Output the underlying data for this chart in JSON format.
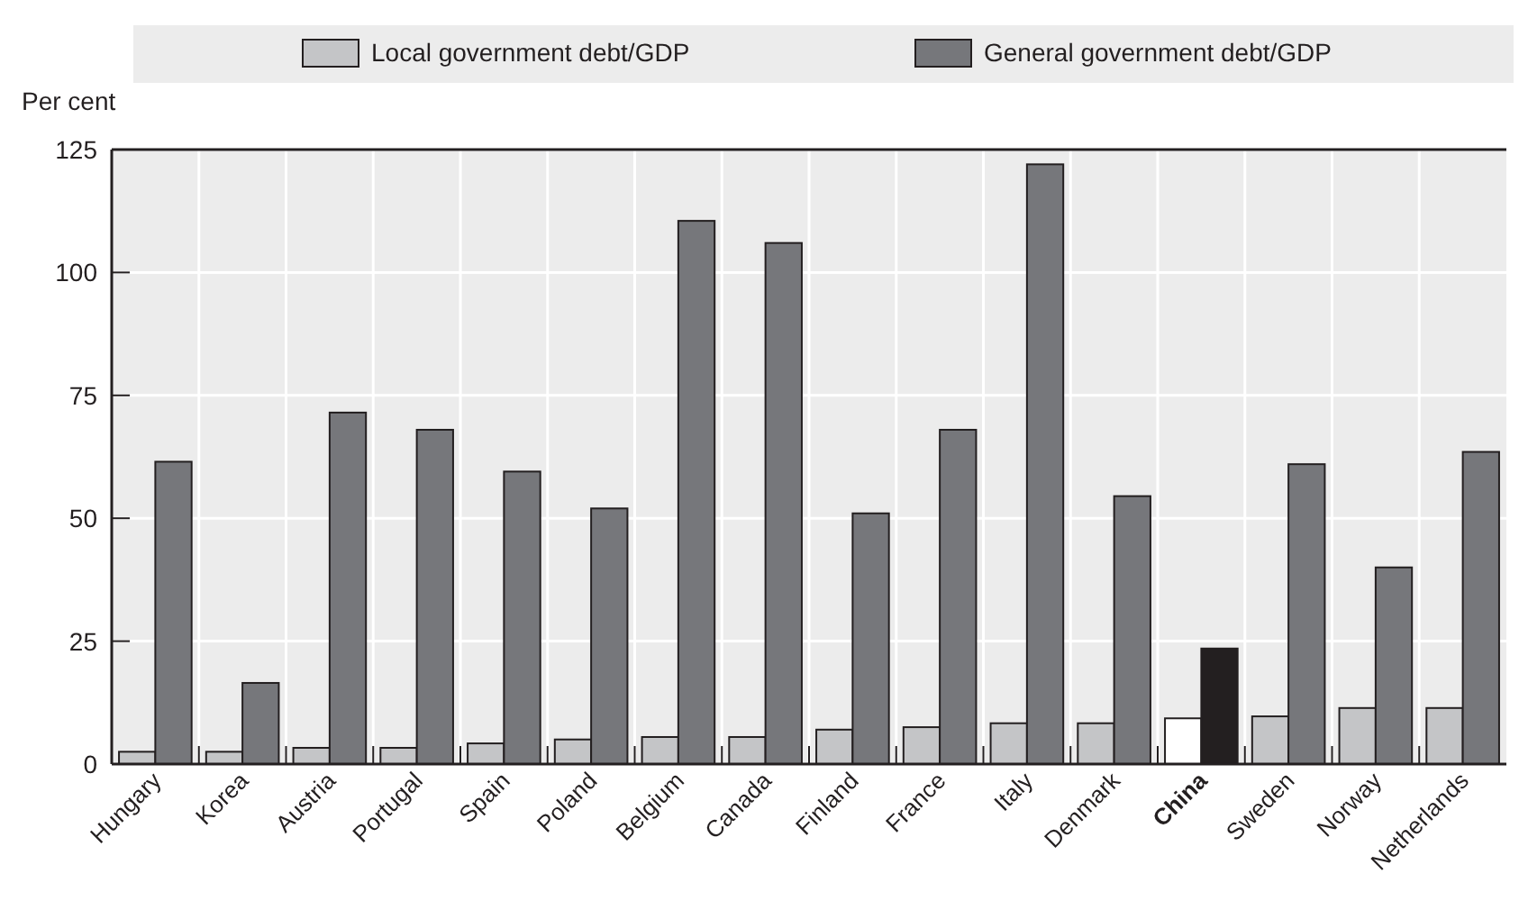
{
  "chart_data": {
    "type": "bar",
    "ylabel": "Per cent",
    "categories": [
      "Hungary",
      "Korea",
      "Austria",
      "Portugal",
      "Spain",
      "Poland",
      "Belgium",
      "Canada",
      "Finland",
      "France",
      "Italy",
      "Denmark",
      "China",
      "Sweden",
      "Norway",
      "Netherlands"
    ],
    "series": [
      {
        "name": "Local government debt/GDP",
        "color": "#c4c5c7",
        "colors": [
          "#c4c5c7",
          "#c4c5c7",
          "#c4c5c7",
          "#c4c5c7",
          "#c4c5c7",
          "#c4c5c7",
          "#c4c5c7",
          "#c4c5c7",
          "#c4c5c7",
          "#c4c5c7",
          "#c4c5c7",
          "#c4c5c7",
          "#ffffff",
          "#c4c5c7",
          "#c4c5c7",
          "#c4c5c7"
        ],
        "values": [
          2.5,
          2.5,
          3.3,
          3.3,
          4.2,
          5,
          5.5,
          5.5,
          7,
          7.5,
          8.3,
          8.3,
          9.3,
          9.7,
          11.4,
          11.4
        ]
      },
      {
        "name": "General government debt/GDP",
        "color": "#76777b",
        "colors": [
          "#76777b",
          "#76777b",
          "#76777b",
          "#76777b",
          "#76777b",
          "#76777b",
          "#76777b",
          "#76777b",
          "#76777b",
          "#76777b",
          "#76777b",
          "#76777b",
          "#231f20",
          "#76777b",
          "#76777b",
          "#76777b"
        ],
        "values": [
          61.5,
          16.5,
          71.5,
          68,
          59.5,
          52,
          110.5,
          106,
          51,
          68,
          122,
          54.5,
          23.5,
          61,
          40,
          63.5
        ]
      }
    ],
    "ylim": [
      0,
      125
    ],
    "yticks": [
      0,
      25,
      50,
      75,
      100,
      125
    ],
    "grid": true,
    "legend": "top"
  }
}
